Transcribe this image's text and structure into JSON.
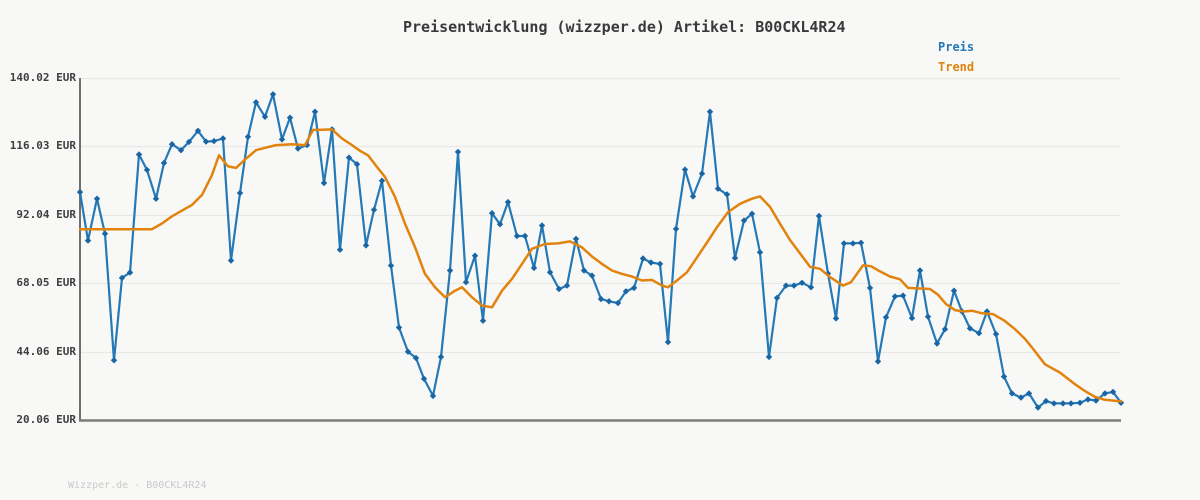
{
  "title": "Preisentwicklung (wizzper.de) Artikel: B00CKL4R24",
  "watermark": "Wizzper.de - B00CKL4R24",
  "chart_data": {
    "type": "line",
    "title": "Preisentwicklung (wizzper.de) Artikel: B00CKL4R24",
    "xlabel": "",
    "ylabel": "",
    "grid": true,
    "legend_position": "top-right",
    "ylim": [
      20.06,
      140.02
    ],
    "y_axis": {
      "tick_labels": [
        "140.02 EUR",
        "116.03 EUR",
        "92.04 EUR",
        "68.05 EUR",
        "44.06 EUR",
        "20.06 EUR"
      ],
      "tick_values": [
        140.02,
        116.03,
        92.04,
        68.05,
        44.06,
        20.06
      ]
    },
    "x_axis": {
      "tick_labels": []
    },
    "colors": {
      "grid": "#e8e8e6",
      "axis": "#6f6f6f",
      "bottom_axis": "#7c7c7c",
      "background": "#f8f8f7"
    },
    "series": [
      {
        "name": "Preis",
        "color": "#2479b6",
        "marker_color": "#1a66a4",
        "marker": "diamond",
        "unit": "EUR",
        "points": [
          [
            80,
            100.0
          ],
          [
            88,
            83.0
          ],
          [
            97,
            97.7
          ],
          [
            105,
            85.4
          ],
          [
            114,
            41.0
          ],
          [
            122,
            69.9
          ],
          [
            130,
            71.8
          ],
          [
            139,
            113.2
          ],
          [
            147,
            107.8
          ],
          [
            156,
            97.7
          ],
          [
            164,
            110.2
          ],
          [
            172,
            116.8
          ],
          [
            181,
            114.7
          ],
          [
            189,
            117.6
          ],
          [
            198,
            121.5
          ],
          [
            206,
            117.7
          ],
          [
            214,
            117.9
          ],
          [
            223,
            118.8
          ],
          [
            231,
            76.0
          ],
          [
            240,
            99.7
          ],
          [
            248,
            119.4
          ],
          [
            256,
            131.5
          ],
          [
            265,
            126.4
          ],
          [
            273,
            134.3
          ],
          [
            282,
            118.5
          ],
          [
            290,
            126.1
          ],
          [
            298,
            115.3
          ],
          [
            307,
            116.5
          ],
          [
            315,
            128.2
          ],
          [
            324,
            103.2
          ],
          [
            332,
            122.0
          ],
          [
            340,
            79.8
          ],
          [
            349,
            112.1
          ],
          [
            357,
            109.8
          ],
          [
            366,
            81.3
          ],
          [
            374,
            93.8
          ],
          [
            382,
            104.0
          ],
          [
            391,
            74.2
          ],
          [
            399,
            52.5
          ],
          [
            408,
            44.0
          ],
          [
            416,
            41.8
          ],
          [
            424,
            34.5
          ],
          [
            433,
            28.5
          ],
          [
            441,
            42.2
          ],
          [
            450,
            72.5
          ],
          [
            458,
            114.1
          ],
          [
            466,
            68.4
          ],
          [
            475,
            77.7
          ],
          [
            483,
            54.9
          ],
          [
            492,
            92.6
          ],
          [
            500,
            88.7
          ],
          [
            508,
            96.5
          ],
          [
            517,
            84.6
          ],
          [
            525,
            84.6
          ],
          [
            534,
            73.4
          ],
          [
            542,
            88.3
          ],
          [
            550,
            71.9
          ],
          [
            559,
            66.0
          ],
          [
            567,
            67.2
          ],
          [
            576,
            83.6
          ],
          [
            584,
            72.5
          ],
          [
            592,
            70.7
          ],
          [
            601,
            62.5
          ],
          [
            609,
            61.7
          ],
          [
            618,
            61.1
          ],
          [
            626,
            65.2
          ],
          [
            634,
            66.4
          ],
          [
            643,
            76.7
          ],
          [
            651,
            75.3
          ],
          [
            660,
            74.8
          ],
          [
            668,
            47.4
          ],
          [
            676,
            87.1
          ],
          [
            685,
            107.9
          ],
          [
            693,
            98.5
          ],
          [
            702,
            106.5
          ],
          [
            710,
            128.2
          ],
          [
            718,
            101.2
          ],
          [
            727,
            99.2
          ],
          [
            735,
            76.9
          ],
          [
            744,
            90.0
          ],
          [
            752,
            92.4
          ],
          [
            760,
            78.9
          ],
          [
            769,
            42.2
          ],
          [
            777,
            62.9
          ],
          [
            786,
            67.2
          ],
          [
            794,
            67.2
          ],
          [
            802,
            68.2
          ],
          [
            811,
            66.6
          ],
          [
            819,
            91.6
          ],
          [
            828,
            71.4
          ],
          [
            836,
            55.7
          ],
          [
            844,
            82.0
          ],
          [
            853,
            82.0
          ],
          [
            861,
            82.2
          ],
          [
            870,
            66.4
          ],
          [
            878,
            40.6
          ],
          [
            886,
            56.1
          ],
          [
            895,
            63.4
          ],
          [
            903,
            63.7
          ],
          [
            912,
            55.8
          ],
          [
            920,
            72.5
          ],
          [
            928,
            56.3
          ],
          [
            937,
            46.9
          ],
          [
            945,
            51.9
          ],
          [
            954,
            65.4
          ],
          [
            962,
            58.1
          ],
          [
            970,
            52.2
          ],
          [
            979,
            50.5
          ],
          [
            987,
            58.1
          ],
          [
            996,
            50.2
          ],
          [
            1004,
            35.3
          ],
          [
            1012,
            29.4
          ],
          [
            1021,
            27.9
          ],
          [
            1029,
            29.4
          ],
          [
            1038,
            24.4
          ],
          [
            1046,
            26.7
          ],
          [
            1054,
            25.9
          ],
          [
            1063,
            25.9
          ],
          [
            1071,
            25.9
          ],
          [
            1080,
            26.1
          ],
          [
            1088,
            27.3
          ],
          [
            1096,
            26.9
          ],
          [
            1105,
            29.4
          ],
          [
            1113,
            29.9
          ],
          [
            1121,
            26.1
          ]
        ]
      },
      {
        "name": "Trend",
        "color": "#e2830d",
        "marker": "none",
        "unit": "EUR",
        "points": [
          [
            80,
            87.0
          ],
          [
            95,
            87.0
          ],
          [
            110,
            87.0
          ],
          [
            125,
            87.0
          ],
          [
            140,
            87.0
          ],
          [
            152,
            87.0
          ],
          [
            162,
            89.0
          ],
          [
            172,
            91.5
          ],
          [
            182,
            93.5
          ],
          [
            192,
            95.5
          ],
          [
            202,
            99.0
          ],
          [
            212,
            106.0
          ],
          [
            219,
            112.9
          ],
          [
            228,
            109.0
          ],
          [
            236,
            108.5
          ],
          [
            246,
            111.7
          ],
          [
            256,
            114.7
          ],
          [
            266,
            115.6
          ],
          [
            276,
            116.5
          ],
          [
            292,
            116.8
          ],
          [
            305,
            116.5
          ],
          [
            313,
            121.8
          ],
          [
            322,
            121.9
          ],
          [
            332,
            122.0
          ],
          [
            342,
            118.8
          ],
          [
            352,
            116.5
          ],
          [
            360,
            114.5
          ],
          [
            368,
            112.9
          ],
          [
            377,
            108.8
          ],
          [
            385,
            105.3
          ],
          [
            395,
            98.3
          ],
          [
            405,
            88.9
          ],
          [
            415,
            80.7
          ],
          [
            425,
            71.3
          ],
          [
            435,
            66.6
          ],
          [
            445,
            63.1
          ],
          [
            455,
            65.4
          ],
          [
            462,
            66.6
          ],
          [
            472,
            63.1
          ],
          [
            482,
            60.2
          ],
          [
            492,
            59.6
          ],
          [
            502,
            65.4
          ],
          [
            512,
            69.6
          ],
          [
            522,
            74.8
          ],
          [
            532,
            80.1
          ],
          [
            545,
            81.8
          ],
          [
            558,
            82.0
          ],
          [
            570,
            82.7
          ],
          [
            582,
            80.6
          ],
          [
            592,
            77.4
          ],
          [
            602,
            74.8
          ],
          [
            612,
            72.5
          ],
          [
            622,
            71.3
          ],
          [
            632,
            70.4
          ],
          [
            642,
            69.0
          ],
          [
            652,
            69.2
          ],
          [
            662,
            67.2
          ],
          [
            668,
            66.6
          ],
          [
            677,
            69.0
          ],
          [
            687,
            71.9
          ],
          [
            697,
            77.1
          ],
          [
            706,
            81.8
          ],
          [
            717,
            87.7
          ],
          [
            728,
            93.0
          ],
          [
            740,
            95.9
          ],
          [
            752,
            97.7
          ],
          [
            760,
            98.5
          ],
          [
            770,
            94.8
          ],
          [
            780,
            88.9
          ],
          [
            790,
            83.2
          ],
          [
            800,
            78.5
          ],
          [
            810,
            73.8
          ],
          [
            820,
            73.1
          ],
          [
            830,
            70.2
          ],
          [
            843,
            67.2
          ],
          [
            851,
            68.4
          ],
          [
            863,
            74.3
          ],
          [
            871,
            74.0
          ],
          [
            880,
            72.2
          ],
          [
            890,
            70.4
          ],
          [
            900,
            69.4
          ],
          [
            908,
            66.4
          ],
          [
            920,
            66.2
          ],
          [
            930,
            66.0
          ],
          [
            938,
            64.0
          ],
          [
            946,
            60.7
          ],
          [
            955,
            58.6
          ],
          [
            964,
            58.1
          ],
          [
            972,
            58.4
          ],
          [
            982,
            57.5
          ],
          [
            993,
            57.2
          ],
          [
            1004,
            55.0
          ],
          [
            1015,
            51.9
          ],
          [
            1025,
            48.5
          ],
          [
            1032,
            45.5
          ],
          [
            1045,
            39.6
          ],
          [
            1060,
            36.7
          ],
          [
            1075,
            32.6
          ],
          [
            1085,
            30.2
          ],
          [
            1095,
            28.2
          ],
          [
            1104,
            27.2
          ],
          [
            1112,
            26.9
          ],
          [
            1121,
            26.6
          ]
        ]
      }
    ]
  }
}
